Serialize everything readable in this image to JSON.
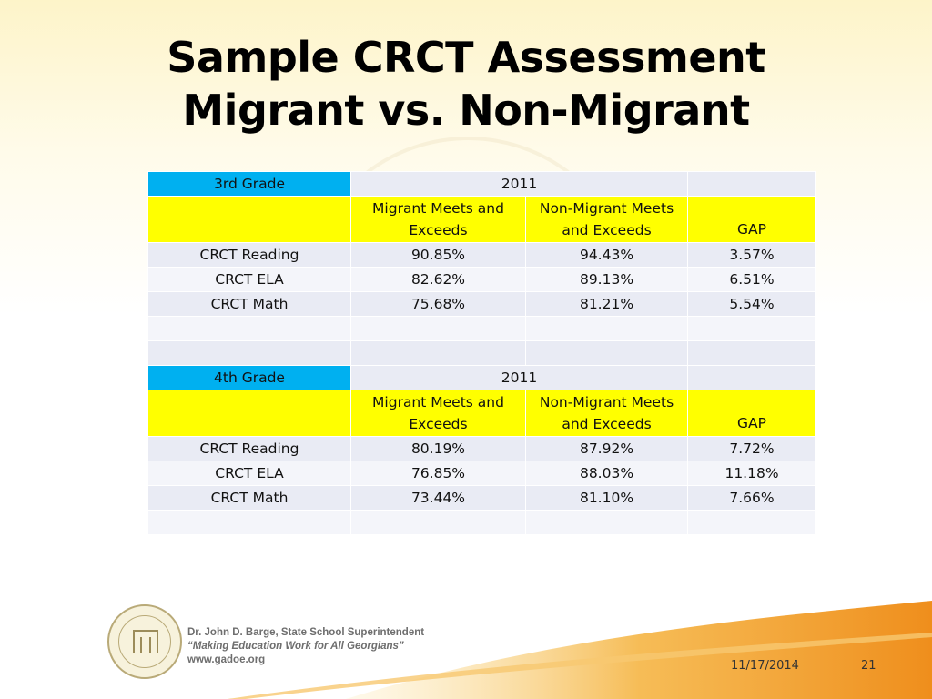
{
  "slide": {
    "title_line1": "Sample CRCT Assessment",
    "title_line2": "Migrant vs. Non-Migrant"
  },
  "tables": [
    {
      "grade": "3rd Grade",
      "year": "2011",
      "headers": [
        "",
        "Migrant Meets and Exceeds",
        "Non-Migrant Meets and Exceeds",
        "GAP"
      ],
      "rows": [
        [
          "CRCT Reading",
          "90.85%",
          "94.43%",
          "3.57%"
        ],
        [
          "CRCT ELA",
          "82.62%",
          "89.13%",
          "6.51%"
        ],
        [
          "CRCT Math",
          "75.68%",
          "81.21%",
          "5.54%"
        ]
      ]
    },
    {
      "grade": "4th Grade",
      "year": "2011",
      "headers": [
        "",
        "Migrant Meets and Exceeds",
        "Non-Migrant Meets and Exceeds",
        "GAP"
      ],
      "rows": [
        [
          "CRCT Reading",
          "80.19%",
          "87.92%",
          "7.72%"
        ],
        [
          "CRCT ELA",
          "76.85%",
          "88.03%",
          "11.18%"
        ],
        [
          "CRCT Math",
          "73.44%",
          "81.10%",
          "7.66%"
        ]
      ]
    }
  ],
  "footer": {
    "line1": "Dr. John D. Barge, State School Superintendent",
    "line2": "“Making Education Work for All Georgians”",
    "line3": "www.gadoe.org",
    "date": "11/17/2014",
    "page": "21",
    "logo_icon": "department-of-education-seal-icon"
  },
  "colors": {
    "grade_cell": "#00b0f0",
    "header_row": "#ffff00",
    "cell": "#e9ebf4",
    "swoosh": "#f0a030"
  }
}
